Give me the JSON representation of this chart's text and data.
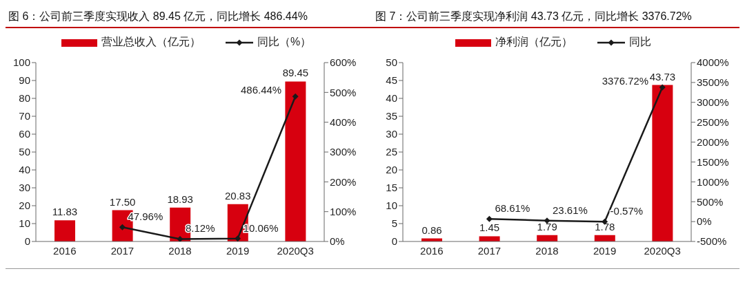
{
  "chart_data": [
    {
      "type": "bar",
      "title": "图 6：公司前三季度实现收入 89.45 亿元，同比增长 486.44%",
      "categories": [
        "2016",
        "2017",
        "2018",
        "2019",
        "2020Q3"
      ],
      "legend": "top",
      "marker": "diamond",
      "ylim": [
        0,
        100
      ],
      "yticks": [
        0,
        10,
        20,
        30,
        40,
        50,
        60,
        70,
        80,
        90,
        100
      ],
      "y2lim": [
        0,
        600
      ],
      "y2ticks": [
        {
          "value": 0,
          "label": "0%"
        },
        {
          "value": 100,
          "label": "100%"
        },
        {
          "value": 200,
          "label": "200%"
        },
        {
          "value": 300,
          "label": "300%"
        },
        {
          "value": 400,
          "label": "400%"
        },
        {
          "value": 500,
          "label": "500%"
        },
        {
          "value": 600,
          "label": "600%"
        }
      ],
      "series": [
        {
          "name": "营业总收入（亿元）",
          "color": "#d7000f",
          "values": [
            11.83,
            17.5,
            18.93,
            20.83,
            89.45
          ],
          "value_labels": [
            "11.83",
            "17.50",
            "18.93",
            "20.83",
            "89.45"
          ]
        },
        {
          "name": "同比（%）",
          "type": "line",
          "axis": "y2",
          "color": "#1a1a1a",
          "values": [
            null,
            47.96,
            8.12,
            10.06,
            486.44
          ],
          "value_labels": [
            null,
            "47.96%",
            "8.12%",
            "10.06%",
            "486.44%"
          ]
        }
      ]
    },
    {
      "type": "bar",
      "title": "图 7：公司前三季度实现净利润 43.73 亿元，同比增长 3376.72%",
      "categories": [
        "2016",
        "2017",
        "2018",
        "2019",
        "2020Q3"
      ],
      "legend": "top",
      "marker": "diamond",
      "ylim": [
        0,
        50
      ],
      "yticks": [
        0,
        5,
        10,
        15,
        20,
        25,
        30,
        35,
        40,
        45,
        50
      ],
      "y2lim": [
        -500,
        4000
      ],
      "y2ticks": [
        {
          "value": -500,
          "label": "-500%"
        },
        {
          "value": 0,
          "label": "0%"
        },
        {
          "value": 500,
          "label": "500%"
        },
        {
          "value": 1000,
          "label": "1000%"
        },
        {
          "value": 1500,
          "label": "1500%"
        },
        {
          "value": 2000,
          "label": "2000%"
        },
        {
          "value": 2500,
          "label": "2500%"
        },
        {
          "value": 3000,
          "label": "3000%"
        },
        {
          "value": 3500,
          "label": "3500%"
        },
        {
          "value": 4000,
          "label": "4000%"
        }
      ],
      "series": [
        {
          "name": "净利润（亿元）",
          "color": "#d7000f",
          "values": [
            0.86,
            1.45,
            1.79,
            1.78,
            43.73
          ],
          "value_labels": [
            "0.86",
            "1.45",
            "1.79",
            "1.78",
            "43.73"
          ]
        },
        {
          "name": "同比",
          "type": "line",
          "axis": "y2",
          "color": "#1a1a1a",
          "values": [
            null,
            68.61,
            23.61,
            -0.57,
            3376.72
          ],
          "value_labels": [
            null,
            "68.61%",
            "23.61%",
            "-0.57%",
            "3376.72%"
          ]
        }
      ]
    }
  ]
}
